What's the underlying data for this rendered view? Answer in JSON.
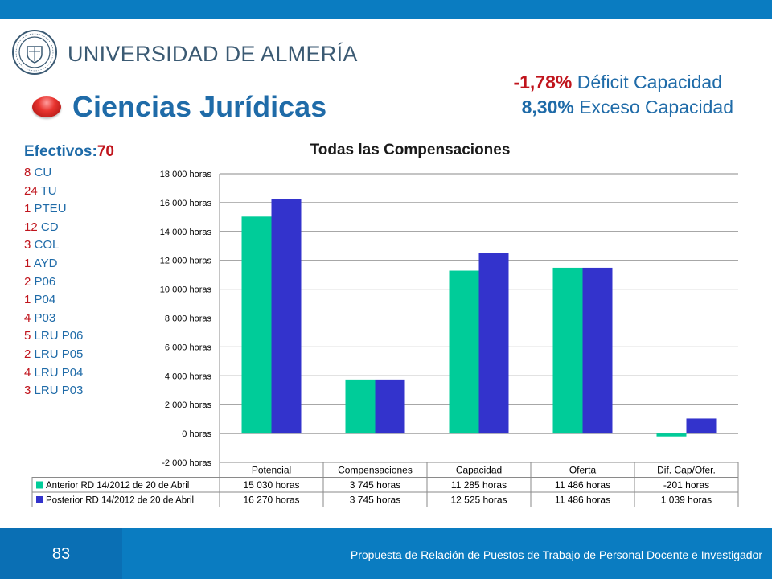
{
  "slide": {
    "institution": "UNIVERSIDAD DE ALMERÍA",
    "title": "Ciencias Jurídicas",
    "stat1": {
      "value": "-1,78%",
      "label": "Déficit Capacidad"
    },
    "stat2": {
      "value": "8,30%",
      "label": "Exceso Capacidad"
    },
    "page_number": "83",
    "footer": "Propuesta de Relación de Puestos de Trabajo de Personal Docente e Investigador"
  },
  "staff": {
    "heading_label": "Efectivos:",
    "heading_count": "70",
    "items": [
      {
        "count": "8",
        "label": "CU"
      },
      {
        "count": "24",
        "label": "TU"
      },
      {
        "count": "1",
        "label": "PTEU"
      },
      {
        "count": "12",
        "label": "CD"
      },
      {
        "count": "3",
        "label": "COL"
      },
      {
        "count": "1",
        "label": "AYD"
      },
      {
        "count": "2",
        "label": "P06"
      },
      {
        "count": "1",
        "label": "P04"
      },
      {
        "count": "4",
        "label": "P03"
      },
      {
        "count": "5",
        "label": "LRU P06"
      },
      {
        "count": "2",
        "label": "LRU P05"
      },
      {
        "count": "4",
        "label": "LRU P04"
      },
      {
        "count": "3",
        "label": "LRU P03"
      }
    ]
  },
  "chart_data": {
    "type": "bar",
    "title": "Todas las Compensaciones",
    "categories": [
      "Potencial",
      "Compensaciones",
      "Capacidad",
      "Oferta",
      "Dif. Cap/Ofer."
    ],
    "series": [
      {
        "name": "Anterior RD 14/2012 de 20 de Abril",
        "color": "#00cc99",
        "values": [
          15030,
          3745,
          11285,
          11486,
          -201
        ],
        "labels": [
          "15 030 horas",
          "3 745 horas",
          "11 285 horas",
          "11 486 horas",
          "-201 horas"
        ]
      },
      {
        "name": "Posterior RD 14/2012 de 20 de Abril",
        "color": "#3333cc",
        "values": [
          16270,
          3745,
          12525,
          11486,
          1039
        ],
        "labels": [
          "16 270 horas",
          "3 745 horas",
          "12 525 horas",
          "11 486 horas",
          "1 039 horas"
        ]
      }
    ],
    "ylim": [
      -2000,
      18000
    ],
    "yticks": [
      -2000,
      0,
      2000,
      4000,
      6000,
      8000,
      10000,
      12000,
      14000,
      16000,
      18000
    ],
    "ytick_labels": [
      "-2 000 horas",
      "0 horas",
      "2 000 horas",
      "4 000 horas",
      "6 000 horas",
      "8 000 horas",
      "10 000 horas",
      "12 000 horas",
      "14 000 horas",
      "16 000 horas",
      "18 000 horas"
    ],
    "grid": true,
    "legend": "data table"
  }
}
